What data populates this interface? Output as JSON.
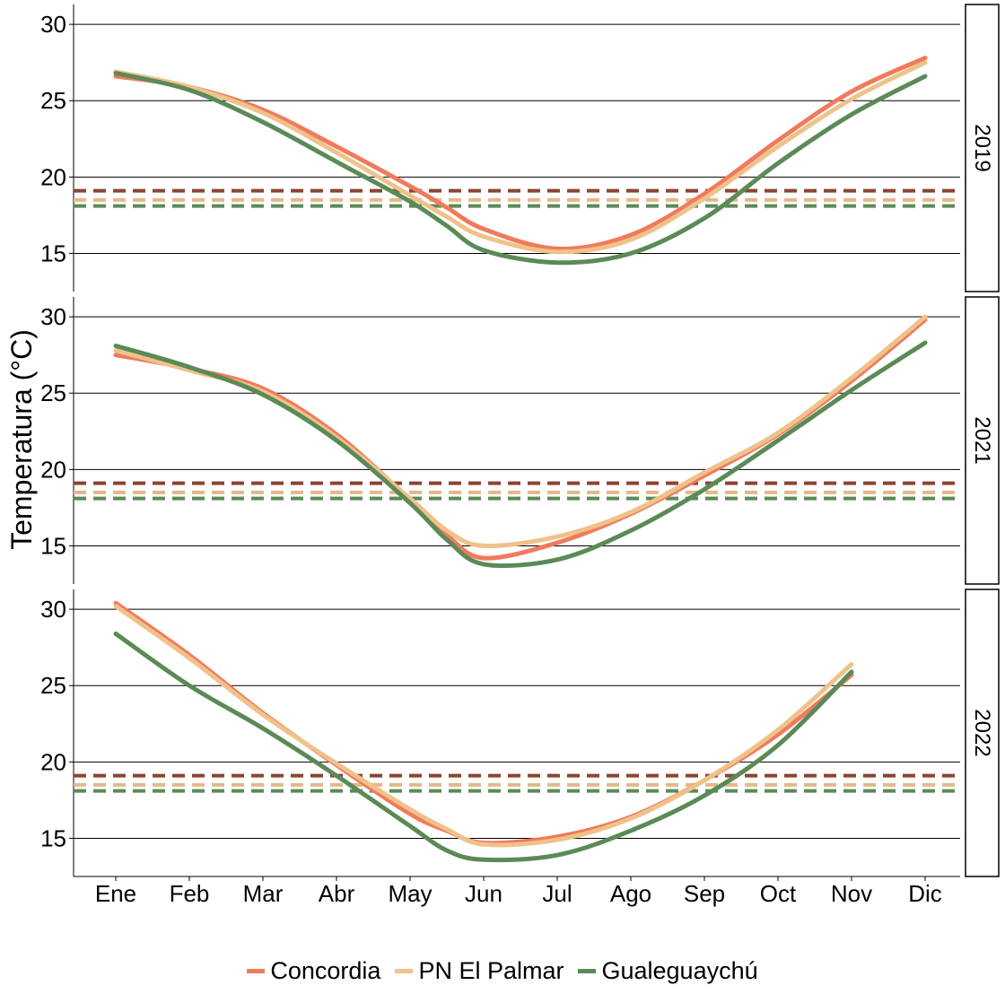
{
  "chart_data": {
    "type": "line",
    "ylabel": "Temperatura (°C)",
    "xlabel": "",
    "x_categories": [
      "Ene",
      "Feb",
      "Mar",
      "Abr",
      "May",
      "Jun",
      "Jul",
      "Ago",
      "Sep",
      "Oct",
      "Nov",
      "Dic"
    ],
    "ylim": [
      12.5,
      31.3
    ],
    "y_ticks": [
      15,
      20,
      25,
      30
    ],
    "grid": "horizontal",
    "legend_position": "bottom",
    "series_styles": [
      {
        "name": "Concordia",
        "color": "#f07b5c",
        "threshold_color": "#8b4433"
      },
      {
        "name": "PN El Palmar",
        "color": "#efc28b",
        "threshold_color": "#e6b887"
      },
      {
        "name": "Gualeguaychú",
        "color": "#5b8a57",
        "threshold_color": "#5b8a57"
      }
    ],
    "thresholds": [
      {
        "series": "Concordia",
        "value": 19.1
      },
      {
        "series": "PN El Palmar",
        "value": 18.5
      },
      {
        "series": "Gualeguaychú",
        "value": 18.1
      }
    ],
    "panels": [
      {
        "strip_label": "2019",
        "series": [
          {
            "name": "Concordia",
            "x": [
              1,
              2,
              3,
              4,
              5,
              5.5,
              6,
              7,
              8,
              9,
              10,
              11,
              12
            ],
            "values": [
              26.6,
              25.9,
              24.4,
              22.0,
              19.4,
              18.0,
              16.6,
              15.3,
              16.2,
              18.9,
              22.4,
              25.6,
              27.8
            ]
          },
          {
            "name": "PN El Palmar",
            "x": [
              1,
              2,
              3,
              4,
              5,
              5.5,
              6,
              7,
              8,
              9,
              10,
              11,
              12
            ],
            "values": [
              26.9,
              25.9,
              24.2,
              21.6,
              18.8,
              17.4,
              16.1,
              15.1,
              15.9,
              18.6,
              22.0,
              25.1,
              27.5
            ]
          },
          {
            "name": "Gualeguaychú",
            "x": [
              1,
              2,
              3,
              4,
              5,
              5.5,
              6,
              7,
              8,
              9,
              10,
              11,
              12
            ],
            "values": [
              26.8,
              25.7,
              23.6,
              21.0,
              18.4,
              16.8,
              15.2,
              14.4,
              15.0,
              17.3,
              20.9,
              24.1,
              26.6
            ]
          }
        ]
      },
      {
        "strip_label": "2021",
        "series": [
          {
            "name": "Concordia",
            "x": [
              1,
              2,
              3,
              4,
              5,
              5.5,
              6,
              7,
              8,
              9,
              10,
              11,
              12
            ],
            "values": [
              27.5,
              26.6,
              25.3,
              22.3,
              18.0,
              15.7,
              14.2,
              15.2,
              17.1,
              19.6,
              22.3,
              25.8,
              29.8
            ]
          },
          {
            "name": "PN El Palmar",
            "x": [
              1,
              2,
              3,
              4,
              5,
              5.5,
              6,
              7,
              8,
              9,
              10,
              11,
              12
            ],
            "values": [
              27.8,
              26.5,
              25.1,
              22.1,
              18.1,
              16.0,
              15.0,
              15.6,
              17.2,
              19.8,
              22.4,
              26.0,
              30.0
            ]
          },
          {
            "name": "Gualeguaychú",
            "x": [
              1,
              2,
              3,
              4,
              5,
              5.5,
              6,
              7,
              8,
              9,
              10,
              11,
              12
            ],
            "values": [
              28.1,
              26.7,
              24.9,
              21.9,
              17.8,
              15.4,
              13.8,
              14.1,
              16.0,
              18.7,
              21.9,
              25.2,
              28.3
            ]
          }
        ]
      },
      {
        "strip_label": "2022",
        "series": [
          {
            "name": "Concordia",
            "x": [
              1,
              2,
              3,
              4,
              5,
              5.5,
              6,
              7,
              8,
              9,
              10,
              11
            ],
            "values": [
              30.4,
              27.0,
              23.2,
              19.8,
              16.6,
              15.5,
              14.7,
              15.1,
              16.4,
              18.8,
              21.8,
              25.7
            ]
          },
          {
            "name": "PN El Palmar",
            "x": [
              1,
              2,
              3,
              4,
              5,
              5.5,
              6,
              7,
              8,
              9,
              10,
              11
            ],
            "values": [
              30.2,
              26.8,
              23.1,
              19.9,
              16.9,
              15.6,
              14.6,
              14.9,
              16.3,
              18.8,
              22.1,
              26.4
            ]
          },
          {
            "name": "Gualeguaychú",
            "x": [
              1,
              2,
              3,
              4,
              5,
              5.5,
              6,
              7,
              8,
              9,
              10,
              11
            ],
            "values": [
              28.4,
              25.0,
              22.2,
              19.1,
              15.8,
              14.2,
              13.6,
              13.9,
              15.5,
              17.8,
              21.1,
              25.9
            ]
          }
        ]
      }
    ]
  }
}
